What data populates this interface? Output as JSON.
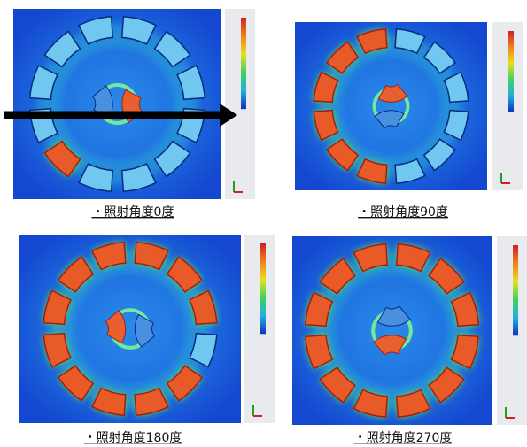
{
  "panels": [
    {
      "caption": "・照射角度0度"
    },
    {
      "caption": "・照射角度90度"
    },
    {
      "caption": "・照射角度180度"
    },
    {
      "caption": "・照射角度270度"
    }
  ]
}
